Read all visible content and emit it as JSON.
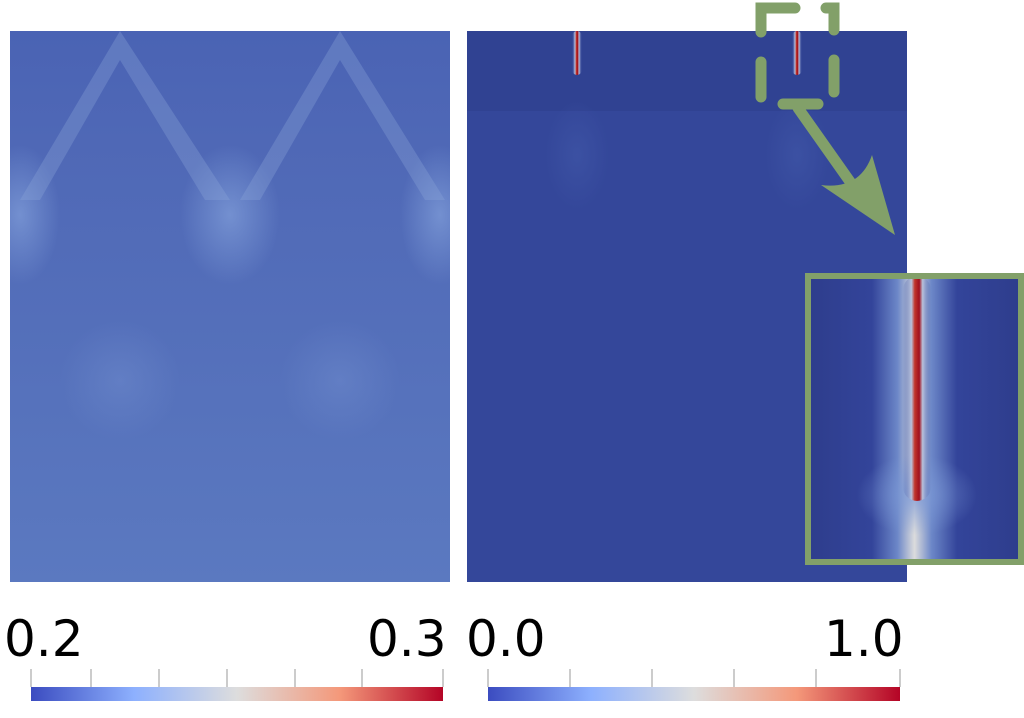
{
  "panels": [
    {
      "name": "left-field",
      "colorbar": {
        "min_label": "0.2",
        "max_label": "0.3",
        "min": 0.2,
        "max": 0.3
      }
    },
    {
      "name": "right-field",
      "colorbar": {
        "min_label": "0.0",
        "max_label": "1.0",
        "min": 0.0,
        "max": 1.0
      }
    }
  ],
  "colormap": [
    "#3b4cc0",
    "#8db0fe",
    "#dddddd",
    "#f4987a",
    "#b40426"
  ],
  "annotation_color": "#82a069"
}
